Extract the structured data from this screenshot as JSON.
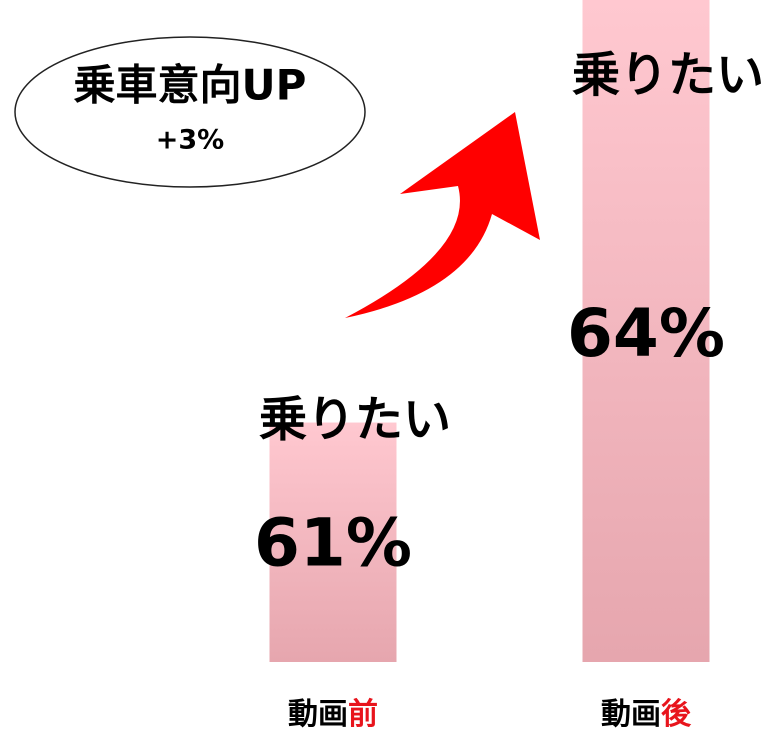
{
  "chart_data": {
    "type": "bar",
    "categories": [
      "動画前",
      "動画後"
    ],
    "values": [
      61,
      64
    ],
    "value_labels": [
      "61%",
      "64%"
    ],
    "bar_label": "乗りたい",
    "bubble_title": "乗車意向UP",
    "bubble_value": "+3%",
    "color": "#ffc4cc",
    "highlight_color": "#e8141c",
    "ylim": [
      59.3,
      64
    ]
  }
}
